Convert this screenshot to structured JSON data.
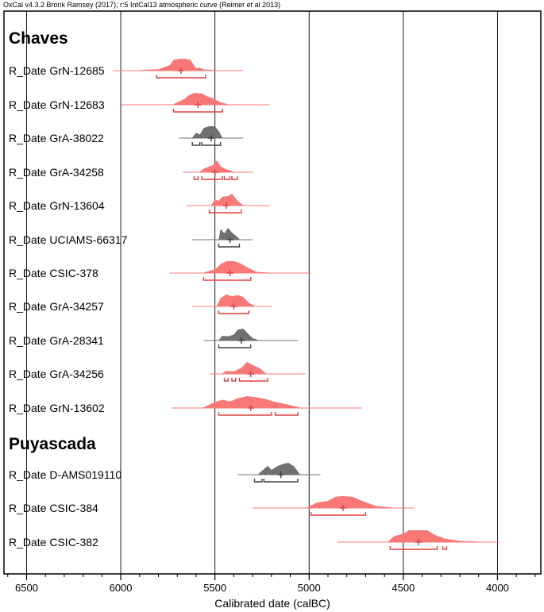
{
  "chart_data": {
    "type": "oxcal-multiplot",
    "header": "OxCal v4.3.2 Bronk Ramsey (2017); r:5 IntCal13 atmospheric curve (Reimer et al 2013)",
    "xlabel": "Calibrated date (calBC)",
    "xlim": [
      6620,
      3770
    ],
    "ticks": [
      6500,
      6000,
      5500,
      5000,
      4500,
      4000
    ],
    "grid": true,
    "colors": {
      "red": "#f87878",
      "gray": "#707070",
      "redLine": "#e04040",
      "grayLine": "#404040",
      "grid": "#000000"
    },
    "groups": [
      {
        "name": "Chaves",
        "entries": [
          {
            "label": "R_Date GrN-12685",
            "color": "red",
            "tail": [
              6040,
              5350
            ],
            "median": 5680,
            "profile": [
              [
                5900,
                0.05
              ],
              [
                5800,
                0.12
              ],
              [
                5740,
                0.45
              ],
              [
                5720,
                0.9
              ],
              [
                5690,
                1.0
              ],
              [
                5660,
                1.0
              ],
              [
                5630,
                0.9
              ],
              [
                5600,
                0.2
              ],
              [
                5580,
                0.25
              ],
              [
                5560,
                0.1
              ],
              [
                5500,
                0.05
              ]
            ],
            "ranges": [
              [
                [
                  5810,
                  5550
                ]
              ]
            ]
          },
          {
            "label": "R_Date GrN-12683",
            "color": "red",
            "tail": [
              6000,
              5210
            ],
            "median": 5590,
            "profile": [
              [
                5720,
                0.05
              ],
              [
                5660,
                0.5
              ],
              [
                5640,
                0.8
              ],
              [
                5610,
                1.0
              ],
              [
                5570,
                0.95
              ],
              [
                5540,
                0.7
              ],
              [
                5510,
                0.55
              ],
              [
                5470,
                0.2
              ],
              [
                5430,
                0.05
              ]
            ],
            "ranges": [
              [
                [
                  5720,
                  5460
                ]
              ]
            ]
          },
          {
            "label": "R_Date GrA-38022",
            "color": "gray",
            "tail": [
              5690,
              5350
            ],
            "median": 5520,
            "profile": [
              [
                5620,
                0.05
              ],
              [
                5600,
                0.45
              ],
              [
                5580,
                0.3
              ],
              [
                5560,
                0.85
              ],
              [
                5530,
                1.0
              ],
              [
                5500,
                1.0
              ],
              [
                5480,
                0.6
              ],
              [
                5460,
                0.05
              ]
            ],
            "ranges": [
              [
                [
                  5620,
                  5580
                ],
                [
                  5570,
                  5470
                ]
              ]
            ]
          },
          {
            "label": "R_Date GrA-34258",
            "color": "red",
            "tail": [
              5670,
              5300
            ],
            "median": 5500,
            "profile": [
              [
                5580,
                0.05
              ],
              [
                5560,
                0.3
              ],
              [
                5510,
                0.6
              ],
              [
                5490,
                1.0
              ],
              [
                5470,
                0.5
              ],
              [
                5440,
                0.25
              ],
              [
                5400,
                0.05
              ]
            ],
            "ranges": [
              [
                [
                  5610,
                  5590
                ],
                [
                  5570,
                  5460
                ],
                [
                  5450,
                  5420
                ],
                [
                  5410,
                  5380
                ]
              ]
            ]
          },
          {
            "label": "R_Date GrN-13604",
            "color": "red",
            "tail": [
              5650,
              5210
            ],
            "median": 5440,
            "profile": [
              [
                5520,
                0.05
              ],
              [
                5500,
                0.5
              ],
              [
                5480,
                0.4
              ],
              [
                5460,
                0.75
              ],
              [
                5430,
                0.8
              ],
              [
                5410,
                1.0
              ],
              [
                5380,
                0.4
              ],
              [
                5350,
                0.05
              ]
            ],
            "ranges": [
              [
                [
                  5530,
                  5360
                ]
              ]
            ]
          },
          {
            "label": "R_Date UCIAMS-66317",
            "color": "gray",
            "tail": [
              5620,
              5300
            ],
            "median": 5420,
            "profile": [
              [
                5480,
                0.05
              ],
              [
                5470,
                0.9
              ],
              [
                5450,
                0.55
              ],
              [
                5430,
                1.0
              ],
              [
                5410,
                0.6
              ],
              [
                5390,
                0.35
              ],
              [
                5370,
                0.05
              ]
            ],
            "ranges": [
              [
                [
                  5480,
                  5370
                ]
              ]
            ]
          },
          {
            "label": "R_Date CSIC-378",
            "color": "red",
            "tail": [
              5740,
              4990
            ],
            "median": 5420,
            "profile": [
              [
                5560,
                0.05
              ],
              [
                5500,
                0.3
              ],
              [
                5470,
                0.75
              ],
              [
                5440,
                1.0
              ],
              [
                5400,
                1.0
              ],
              [
                5370,
                0.85
              ],
              [
                5330,
                0.5
              ],
              [
                5280,
                0.1
              ],
              [
                5220,
                0.05
              ]
            ],
            "ranges": [
              [
                [
                  5560,
                  5310
                ]
              ]
            ]
          },
          {
            "label": "R_Date GrA-34257",
            "color": "red",
            "tail": [
              5620,
              5200
            ],
            "median": 5400,
            "profile": [
              [
                5490,
                0.05
              ],
              [
                5470,
                0.7
              ],
              [
                5440,
                1.0
              ],
              [
                5410,
                0.85
              ],
              [
                5380,
                0.95
              ],
              [
                5350,
                0.8
              ],
              [
                5320,
                0.3
              ],
              [
                5290,
                0.05
              ]
            ],
            "ranges": [
              [
                [
                  5480,
                  5320
                ]
              ]
            ]
          },
          {
            "label": "R_Date GrA-28341",
            "color": "gray",
            "tail": [
              5560,
              5060
            ],
            "median": 5360,
            "profile": [
              [
                5480,
                0.05
              ],
              [
                5460,
                0.4
              ],
              [
                5430,
                0.35
              ],
              [
                5400,
                0.5
              ],
              [
                5380,
                0.9
              ],
              [
                5350,
                1.0
              ],
              [
                5320,
                0.5
              ],
              [
                5300,
                0.2
              ],
              [
                5270,
                0.05
              ]
            ],
            "ranges": [
              [
                [
                  5480,
                  5310
                ]
              ]
            ]
          },
          {
            "label": "R_Date GrA-34256",
            "color": "red",
            "tail": [
              5530,
              5020
            ],
            "median": 5310,
            "profile": [
              [
                5460,
                0.05
              ],
              [
                5440,
                0.25
              ],
              [
                5400,
                0.2
              ],
              [
                5360,
                0.5
              ],
              [
                5330,
                1.0
              ],
              [
                5300,
                0.75
              ],
              [
                5260,
                0.45
              ],
              [
                5230,
                0.05
              ]
            ],
            "ranges": [
              [
                [
                  5450,
                  5430
                ],
                [
                  5410,
                  5390
                ],
                [
                  5370,
                  5220
                ]
              ]
            ]
          },
          {
            "label": "R_Date GrN-13602",
            "color": "red",
            "tail": [
              5730,
              4720
            ],
            "median": 5310,
            "profile": [
              [
                5560,
                0.05
              ],
              [
                5500,
                0.5
              ],
              [
                5460,
                0.7
              ],
              [
                5420,
                0.55
              ],
              [
                5380,
                0.8
              ],
              [
                5330,
                1.0
              ],
              [
                5280,
                0.9
              ],
              [
                5230,
                0.75
              ],
              [
                5180,
                0.5
              ],
              [
                5130,
                0.35
              ],
              [
                5050,
                0.05
              ]
            ],
            "ranges": [
              [
                [
                  5480,
                  5200
                ],
                [
                  5180,
                  5060
                ]
              ]
            ]
          }
        ]
      },
      {
        "name": "Puyascada",
        "entries": [
          {
            "label": "R_Date D-AMS019110",
            "color": "gray",
            "tail": [
              5380,
              4940
            ],
            "median": 5150,
            "profile": [
              [
                5270,
                0.05
              ],
              [
                5220,
                0.75
              ],
              [
                5200,
                0.4
              ],
              [
                5170,
                0.7
              ],
              [
                5140,
                0.9
              ],
              [
                5110,
                1.0
              ],
              [
                5080,
                0.7
              ],
              [
                5050,
                0.05
              ]
            ],
            "ranges": [
              [
                [
                  5290,
                  5250
                ],
                [
                  5240,
                  5060
                ]
              ]
            ]
          },
          {
            "label": "R_Date CSIC-384",
            "color": "red",
            "tail": [
              5300,
              4440
            ],
            "median": 4820,
            "profile": [
              [
                5010,
                0.05
              ],
              [
                4960,
                0.45
              ],
              [
                4900,
                0.6
              ],
              [
                4860,
                0.95
              ],
              [
                4820,
                1.0
              ],
              [
                4770,
                0.95
              ],
              [
                4720,
                0.6
              ],
              [
                4640,
                0.15
              ],
              [
                4560,
                0.05
              ]
            ],
            "ranges": [
              [
                [
                  4990,
                  4700
                ]
              ]
            ]
          },
          {
            "label": "R_Date CSIC-382",
            "color": "red",
            "tail": [
              4850,
              3990
            ],
            "median": 4420,
            "profile": [
              [
                4580,
                0.05
              ],
              [
                4550,
                0.5
              ],
              [
                4500,
                0.7
              ],
              [
                4470,
                1.0
              ],
              [
                4420,
                1.0
              ],
              [
                4370,
                1.0
              ],
              [
                4340,
                0.65
              ],
              [
                4280,
                0.3
              ],
              [
                4200,
                0.1
              ],
              [
                4100,
                0.05
              ]
            ],
            "ranges": [
              [
                [
                  4570,
                  4320
                ],
                [
                  4290,
                  4270
                ]
              ]
            ]
          }
        ]
      }
    ]
  }
}
